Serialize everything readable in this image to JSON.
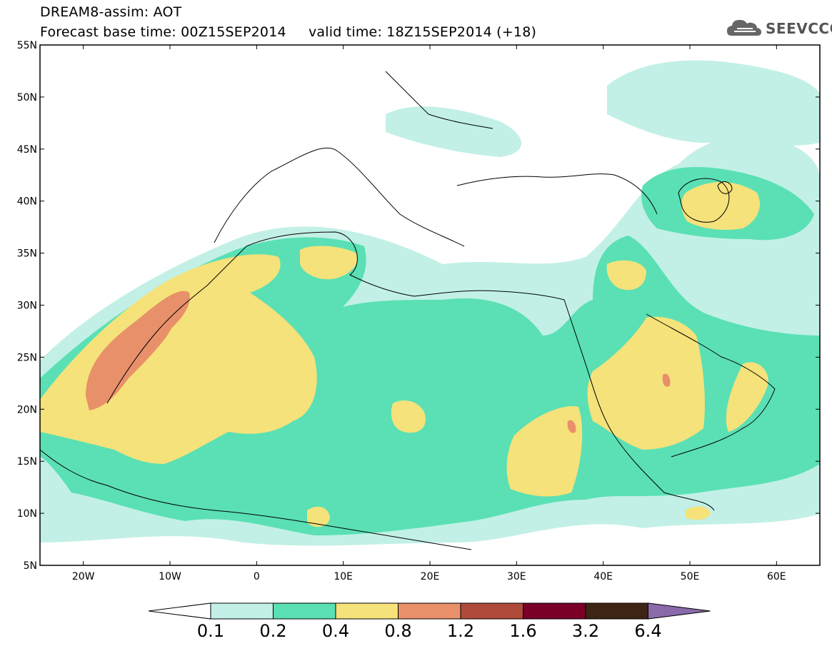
{
  "title": {
    "line1": "DREAM8-assim: AOT",
    "line2": "Forecast base time: 00Z15SEP2014     valid time: 18Z15SEP2014 (+18)"
  },
  "logo": {
    "text": "SEEVCCC",
    "icon": "cloud-logo-icon"
  },
  "map": {
    "lon_range": [
      -25,
      65
    ],
    "lat_range": [
      5,
      55
    ],
    "lon_ticks": [
      {
        "value": -20,
        "label": "20W"
      },
      {
        "value": -10,
        "label": "10W"
      },
      {
        "value": 0,
        "label": "0"
      },
      {
        "value": 10,
        "label": "10E"
      },
      {
        "value": 20,
        "label": "20E"
      },
      {
        "value": 30,
        "label": "30E"
      },
      {
        "value": 40,
        "label": "40E"
      },
      {
        "value": 50,
        "label": "50E"
      },
      {
        "value": 60,
        "label": "60E"
      }
    ],
    "lat_ticks": [
      {
        "value": 5,
        "label": "5N"
      },
      {
        "value": 10,
        "label": "10N"
      },
      {
        "value": 15,
        "label": "15N"
      },
      {
        "value": 20,
        "label": "20N"
      },
      {
        "value": 25,
        "label": "25N"
      },
      {
        "value": 30,
        "label": "30N"
      },
      {
        "value": 35,
        "label": "35N"
      },
      {
        "value": 40,
        "label": "40N"
      },
      {
        "value": 45,
        "label": "45N"
      },
      {
        "value": 50,
        "label": "50N"
      },
      {
        "value": 55,
        "label": "55N"
      }
    ]
  },
  "colorbar": {
    "labels": [
      "0.1",
      "0.2",
      "0.4",
      "0.8",
      "1.2",
      "1.6",
      "3.2",
      "6.4"
    ],
    "colors": [
      "#c2f0e6",
      "#5ae0b4",
      "#f5e27a",
      "#e8906a",
      "#b04a3a",
      "#7a0028",
      "#3d2414"
    ],
    "under_color": "#ffffff",
    "over_color": "#8a6aaa"
  },
  "fill_colors": {
    "c1": "#c2f0e6",
    "c2": "#5ae0b4",
    "c3": "#f5e27a",
    "c4": "#e8906a"
  }
}
